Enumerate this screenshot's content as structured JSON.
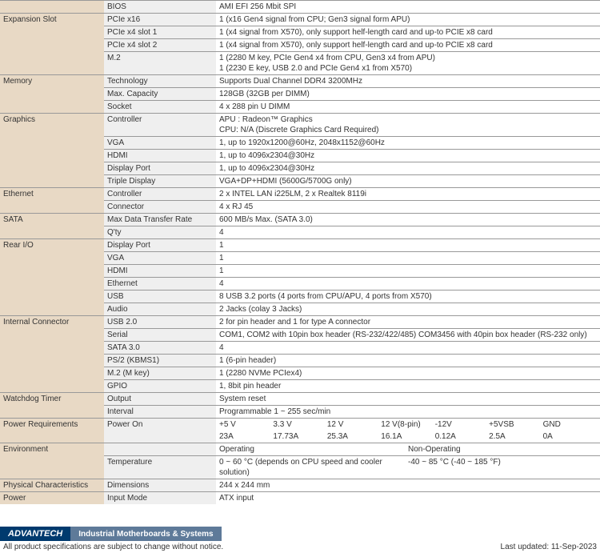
{
  "rows": [
    {
      "cat": "",
      "sub": "BIOS",
      "val": "AMI EFI 256 Mbit SPI"
    },
    {
      "cat": "Expansion Slot",
      "catRowspan": 4,
      "sub": "PCIe x16",
      "val": "1 (x16 Gen4 signal from CPU; Gen3 signal form APU)"
    },
    {
      "sub": "PCIe x4 slot 1",
      "val": "1 (x4 signal from X570), only support helf-length card and up-to PCIE x8 card"
    },
    {
      "sub": "PCIe x4 slot 2",
      "val": "1 (x4 signal from X570), only support helf-length card and up-to PCIE x8 card"
    },
    {
      "sub": "M.2",
      "val": "1 (2280 M key, PCIe Gen4 x4 from CPU, Gen3 x4 from APU)\n1 (2230 E key, USB 2.0 and PCIe Gen4 x1 from X570)"
    },
    {
      "cat": "Memory",
      "catRowspan": 3,
      "sub": "Technology",
      "val": "Supports Dual Channel DDR4 3200MHz"
    },
    {
      "sub": "Max. Capacity",
      "val": "128GB (32GB per DIMM)"
    },
    {
      "sub": "Socket",
      "val": "4 x 288 pin U DIMM"
    },
    {
      "cat": "Graphics",
      "catRowspan": 5,
      "sub": "Controller",
      "val": "APU : Radeon™ Graphics\nCPU: N/A (Discrete Graphics Card Required)"
    },
    {
      "sub": "VGA",
      "val": "1, up to 1920x1200@60Hz, 2048x1152@60Hz"
    },
    {
      "sub": "HDMI",
      "val": "1, up to  4096x2304@30Hz"
    },
    {
      "sub": "Display Port",
      "val": "1, up to 4096x2304@30Hz"
    },
    {
      "sub": "Triple Display",
      "val": "VGA+DP+HDMI (5600G/5700G only)"
    },
    {
      "cat": "Ethernet",
      "catRowspan": 2,
      "sub": "Controller",
      "val": "2 x INTEL LAN i225LM, 2 x Realtek 8119i"
    },
    {
      "sub": "Connector",
      "val": "4 x RJ 45"
    },
    {
      "cat": "SATA",
      "catRowspan": 2,
      "sub": "Max Data Transfer Rate",
      "val": "600 MB/s Max. (SATA 3.0)"
    },
    {
      "sub": "Q'ty",
      "val": "4"
    },
    {
      "cat": "Rear I/O",
      "catRowspan": 6,
      "sub": "Display Port",
      "val": "1"
    },
    {
      "sub": "VGA",
      "val": "1"
    },
    {
      "sub": "HDMI",
      "val": "1"
    },
    {
      "sub": "Ethernet",
      "val": "4"
    },
    {
      "sub": "USB",
      "val": "8 USB 3.2 ports (4 ports from CPU/APU, 4 ports from X570)"
    },
    {
      "sub": "Audio",
      "val": "2 Jacks (colay 3 Jacks)"
    },
    {
      "cat": "Internal Connector",
      "catRowspan": 6,
      "sub": "USB 2.0",
      "val": "2 for pin header and 1 for type A connector"
    },
    {
      "sub": "Serial",
      "val": "COM1, COM2 with 10pin box header (RS-232/422/485) COM3456 with 40pin box header (RS-232 only)"
    },
    {
      "sub": "SATA 3.0",
      "val": "4"
    },
    {
      "sub": "PS/2 (KBMS1)",
      "val": "1 (6-pin header)"
    },
    {
      "sub": "M.2 (M key)",
      "val": "1 (2280 NVMe PCIex4)"
    },
    {
      "sub": "GPIO",
      "val": "1, 8bit pin header"
    },
    {
      "cat": "Watchdog Timer",
      "catRowspan": 2,
      "sub": "Output",
      "val": "System reset"
    },
    {
      "sub": "Interval",
      "val": "Programmable 1 ~ 255 sec/min"
    }
  ],
  "power": {
    "cat": "Power Requirements",
    "sub": "Power On",
    "head": [
      "+5 V",
      "3.3 V",
      "12 V",
      "12 V(8-pin)",
      "-12V",
      "+5VSB",
      "GND"
    ],
    "vals": [
      "23A",
      "17.73A",
      "25.3A",
      "16.1A",
      "0.12A",
      "2.5A",
      "0A"
    ]
  },
  "env": {
    "cat": "Environment",
    "head": [
      "Operating",
      "Non-Operating"
    ],
    "sub": "Temperature",
    "vals": [
      "0 ~ 60 °C (depends on CPU speed and cooler solution)",
      "-40 ~ 85 °C (-40 ~ 185 °F)"
    ]
  },
  "phys": {
    "cat": "Physical Characteristics",
    "sub": "Dimensions",
    "val": "244 x 244 mm"
  },
  "powermode": {
    "cat": "Power",
    "sub": "Input Mode",
    "val": "ATX input"
  },
  "brand": "ADVANTECH",
  "tag": "Industrial Motherboards & Systems",
  "disclaimer": "All product specifications are subject to change without notice.",
  "updated": "Last updated: 11-Sep-2023"
}
